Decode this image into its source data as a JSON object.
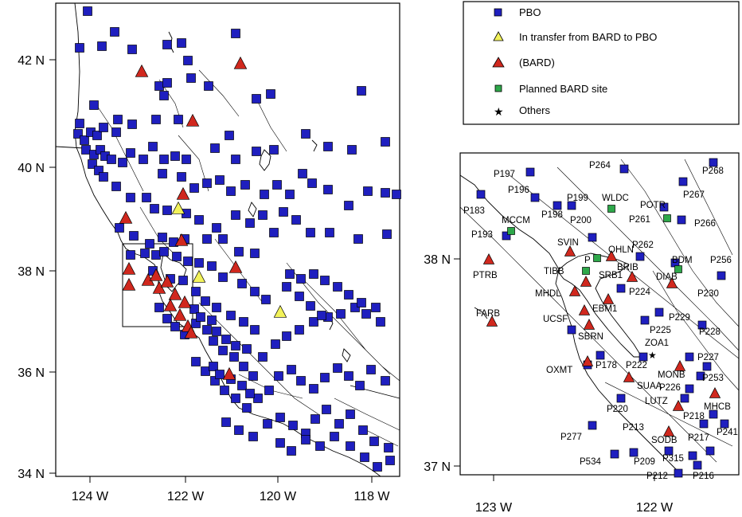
{
  "legend": {
    "items": [
      {
        "label": "PBO",
        "symbol": "square",
        "color": "#1f1fbf"
      },
      {
        "label": "In transfer from BARD to PBO",
        "symbol": "triangle",
        "color": "#f2f25a"
      },
      {
        "label": "(BARD)",
        "symbol": "triangle",
        "color": "#d0281e"
      },
      {
        "label": "Planned BARD site",
        "symbol": "square",
        "color": "#2ea84a"
      },
      {
        "label": "Others",
        "symbol": "star",
        "color": "#000000"
      }
    ]
  },
  "map_main": {
    "lon_ticks": [
      "124 W",
      "122 W",
      "120 W",
      "118 W"
    ],
    "lat_ticks": [
      "42 N",
      "40 N",
      "38 N",
      "36 N",
      "34 N"
    ]
  },
  "map_inset": {
    "lon_ticks": [
      "123 W",
      "122 W"
    ],
    "lat_ticks": [
      "38 N",
      "37 N"
    ],
    "site_labels": [
      "P264",
      "P268",
      "P197",
      "P196",
      "P199",
      "WLDC",
      "POTR",
      "P267",
      "P183",
      "P198",
      "P200",
      "P261",
      "P266",
      "MCCM",
      "P193",
      "SVIN",
      "OHLN",
      "P262",
      "P256",
      "BDM",
      "PTRB",
      "TIBB",
      "BRIB",
      "SRB1",
      "P",
      "DIAB",
      "P224",
      "MHDL",
      "P230",
      "FARB",
      "EBM1",
      "P229",
      "UCSF",
      "P225",
      "P228",
      "SBRN",
      "ZOA1",
      "P227",
      "OXMT",
      "P178",
      "P222",
      "MONB",
      "P253",
      "SUAA",
      "P226",
      "LUTZ",
      "MHCB",
      "P220",
      "P218",
      "P213",
      "P241",
      "P277",
      "SODB",
      "P217",
      "P534",
      "P209",
      "P315",
      "P212",
      "P216"
    ]
  }
}
